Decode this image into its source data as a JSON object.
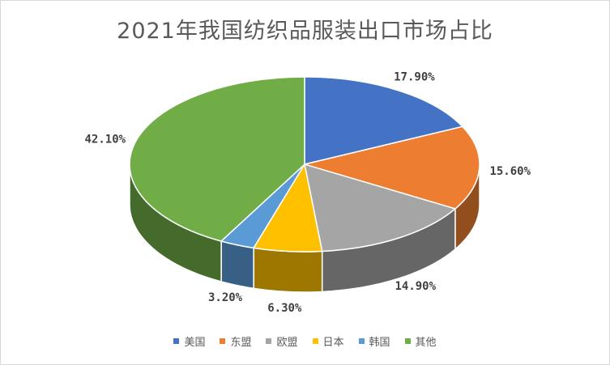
{
  "chart_data": {
    "type": "pie",
    "title": "2021年我国纺织品服装出口市场占比",
    "categories": [
      "美国",
      "东盟",
      "欧盟",
      "日本",
      "韩国",
      "其他"
    ],
    "values": [
      17.9,
      15.6,
      14.9,
      6.3,
      3.2,
      42.1
    ],
    "labels": [
      "17.90%",
      "15.60%",
      "14.90%",
      "6.30%",
      "3.20%",
      "42.10%"
    ],
    "colors": [
      "#4472c4",
      "#ed7d31",
      "#a5a5a5",
      "#ffc000",
      "#5b9bd5",
      "#70ad47"
    ],
    "legend_position": "bottom",
    "style": "3d"
  }
}
